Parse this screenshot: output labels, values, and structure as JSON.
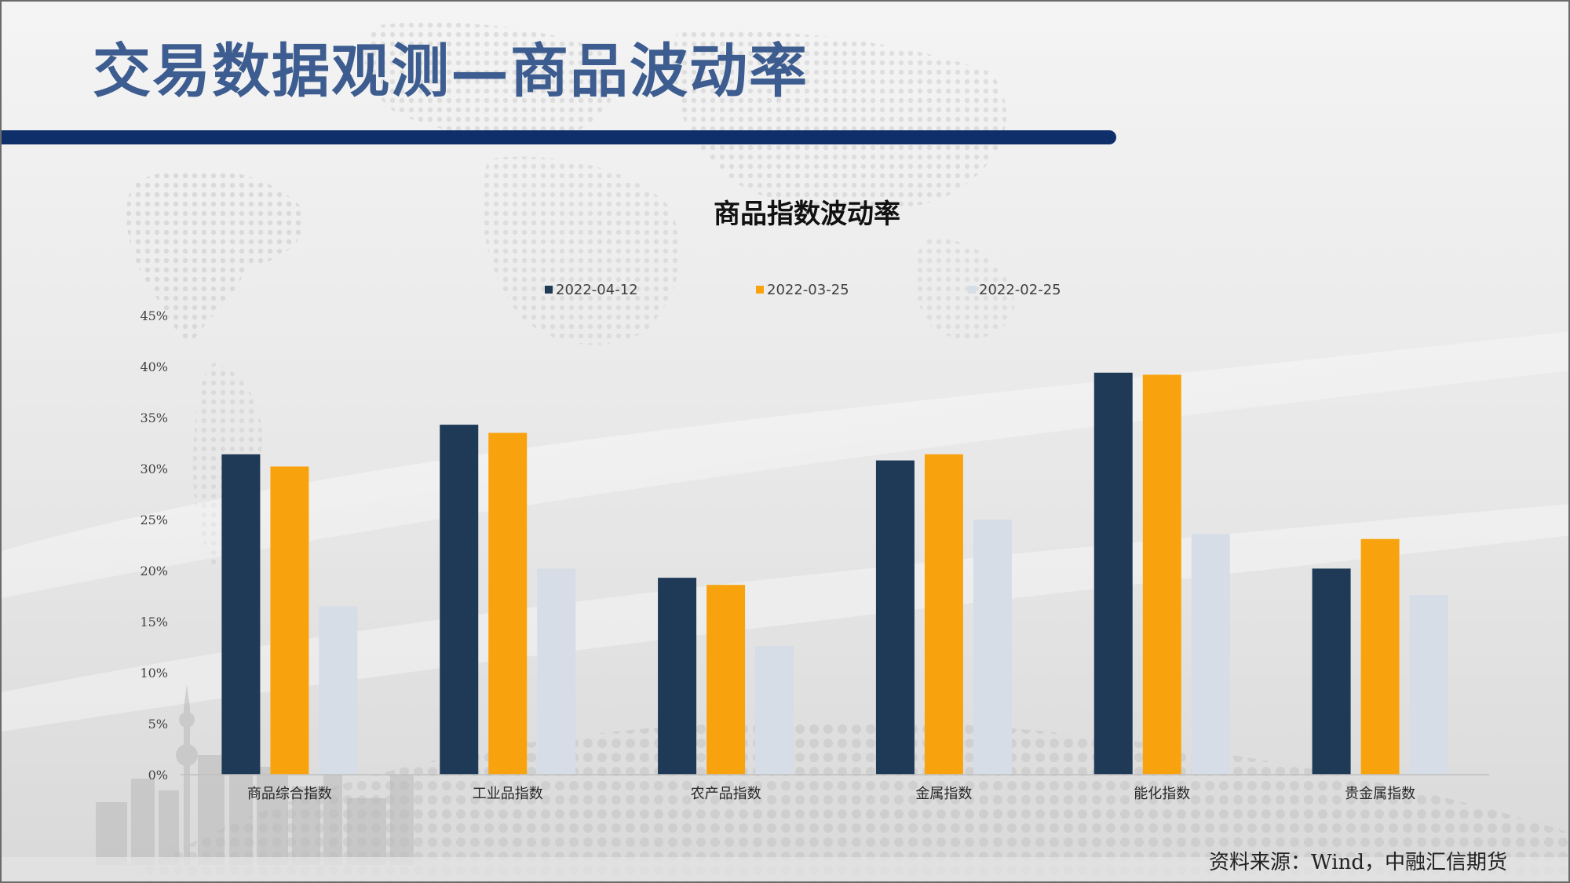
{
  "header": {
    "title": "交易数据观测—商品波动率"
  },
  "footer": {
    "source": "资料来源：Wind，中融汇信期货"
  },
  "colors": {
    "title_text": "#3d5c8f",
    "title_rule": "#0f2f6b"
  },
  "chart_data": {
    "type": "bar",
    "title": "商品指数波动率",
    "xlabel": "",
    "ylabel": "",
    "categories": [
      "商品综合指数",
      "工业品指数",
      "农产品指数",
      "金属指数",
      "能化指数",
      "贵金属指数"
    ],
    "series": [
      {
        "name": "2022-04-12",
        "color": "#1f3a57",
        "values": [
          31.4,
          34.3,
          19.3,
          30.8,
          39.4,
          20.2
        ]
      },
      {
        "name": "2022-03-25",
        "color": "#f8a30e",
        "values": [
          30.2,
          33.5,
          18.6,
          31.4,
          39.2,
          23.1
        ]
      },
      {
        "name": "2022-02-25",
        "color": "#d6dde6",
        "values": [
          16.5,
          20.2,
          12.6,
          25.0,
          23.6,
          17.6
        ]
      }
    ],
    "ylim": [
      0,
      45
    ],
    "yticks": [
      "0%",
      "5%",
      "10%",
      "15%",
      "20%",
      "25%",
      "30%",
      "35%",
      "40%",
      "45%"
    ],
    "unit": "%",
    "grid": false,
    "legend_position": "top-center"
  }
}
